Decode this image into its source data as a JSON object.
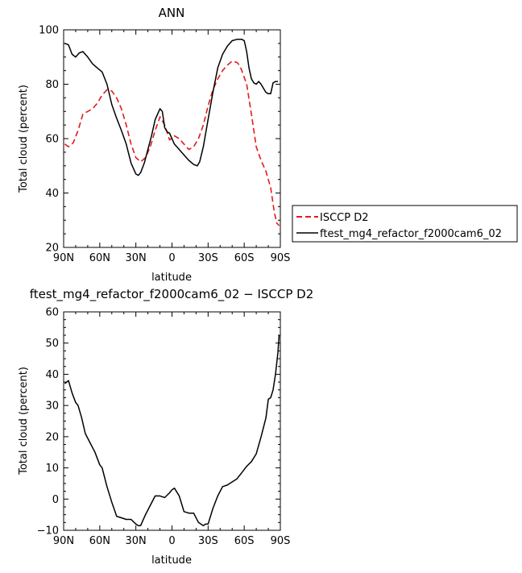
{
  "chart_data": [
    {
      "type": "line",
      "title": "ANN",
      "xlabel": "latitude",
      "ylabel": "Total cloud (percent)",
      "x_ticks": [
        "90N",
        "60N",
        "30N",
        "0",
        "30S",
        "60S",
        "90S"
      ],
      "y_ticks": [
        "20",
        "40",
        "60",
        "80",
        "100"
      ],
      "xlim": [
        90,
        -90
      ],
      "ylim": [
        20,
        100
      ],
      "legend_placement": "outside-right",
      "series": [
        {
          "name": "ISCCP D2",
          "color": "#e31a1c",
          "dash": "dashed",
          "x": [
            89,
            86,
            82,
            78,
            74,
            70,
            66,
            62,
            58,
            54,
            50,
            46,
            42,
            38,
            34,
            30,
            26,
            22,
            18,
            14,
            10,
            6,
            2,
            -2,
            -6,
            -10,
            -14,
            -18,
            -22,
            -26,
            -30,
            -34,
            -38,
            -42,
            -46,
            -50,
            -54,
            -56,
            -58,
            -62,
            -66,
            -70,
            -74,
            -78,
            -82,
            -85,
            -87,
            -89
          ],
          "y": [
            58,
            57,
            58.5,
            63,
            69,
            70,
            71,
            73,
            76,
            78,
            77.5,
            75,
            71,
            65,
            58,
            53,
            51.5,
            53,
            57,
            63,
            68,
            65,
            59.5,
            61,
            60,
            58,
            56,
            57,
            60,
            65,
            72,
            78,
            82,
            85,
            87,
            88.5,
            88,
            87,
            85,
            80,
            69,
            57,
            52,
            48,
            42,
            33,
            29,
            28
          ]
        },
        {
          "name": "ftest_mg4_refactor_f2000cam6_02",
          "color": "#000000",
          "dash": "solid",
          "x": [
            89,
            86,
            83,
            80,
            77,
            74,
            70,
            66,
            62,
            58,
            54,
            50,
            46,
            42,
            38,
            34,
            30,
            28,
            26,
            23,
            20,
            17,
            14,
            10,
            8,
            6,
            4,
            2,
            -2,
            -6,
            -10,
            -14,
            -18,
            -21,
            -23,
            -26,
            -30,
            -34,
            -38,
            -42,
            -46,
            -50,
            -54,
            -58,
            -60,
            -62,
            -64,
            -66,
            -68,
            -70,
            -72,
            -74,
            -76,
            -78,
            -80,
            -82,
            -84,
            -86,
            -88
          ],
          "y": [
            95,
            94.5,
            91,
            90,
            91.5,
            92,
            90,
            87.5,
            86,
            84.5,
            80,
            72.5,
            67.5,
            63,
            58,
            51,
            47,
            46.5,
            47.5,
            51,
            56,
            61,
            67,
            71,
            70,
            64,
            62.5,
            62,
            58,
            56,
            54,
            52,
            50.5,
            50,
            51.5,
            57,
            67,
            77,
            86,
            91,
            94,
            96,
            96.5,
            96.5,
            96,
            92,
            86,
            82,
            80.5,
            80,
            81,
            80,
            78.5,
            77,
            76.5,
            76.5,
            80.5,
            81,
            81
          ]
        }
      ]
    },
    {
      "type": "line",
      "title": "ftest_mg4_refactor_f2000cam6_02 − ISCCP D2",
      "xlabel": "latitude",
      "ylabel": "Total cloud (percent)",
      "x_ticks": [
        "90N",
        "60N",
        "30N",
        "0",
        "30S",
        "60S",
        "90S"
      ],
      "y_ticks": [
        "−10",
        "0",
        "10",
        "20",
        "30",
        "40",
        "50",
        "60"
      ],
      "xlim": [
        90,
        -90
      ],
      "ylim": [
        -10,
        60
      ],
      "series": [
        {
          "color": "#000000",
          "dash": "solid",
          "x": [
            89,
            86,
            83,
            80,
            78,
            75,
            72,
            68,
            64,
            60,
            58,
            54,
            50,
            46,
            42,
            38,
            34,
            30,
            28,
            26,
            22,
            18,
            14,
            10,
            6,
            2,
            0,
            -2,
            -6,
            -10,
            -14,
            -18,
            -22,
            -26,
            -28,
            -30,
            -34,
            -38,
            -42,
            -46,
            -50,
            -54,
            -58,
            -62,
            -66,
            -70,
            -74,
            -78,
            -80,
            -82,
            -84,
            -86,
            -88,
            -89
          ],
          "y": [
            37,
            38,
            34,
            31,
            30,
            26,
            21,
            18,
            15,
            11,
            10,
            4,
            -1,
            -5.5,
            -6,
            -6.5,
            -6.5,
            -8,
            -8.5,
            -8.5,
            -5,
            -2,
            1,
            1,
            0.5,
            2,
            3,
            3.5,
            1,
            -4,
            -4.5,
            -4.5,
            -7.5,
            -8.5,
            -8,
            -8,
            -3,
            1,
            4,
            4.5,
            5.5,
            6.5,
            8.5,
            10.5,
            12,
            14.5,
            20,
            26,
            32,
            32.5,
            35,
            40,
            47,
            52.5
          ]
        }
      ]
    }
  ]
}
